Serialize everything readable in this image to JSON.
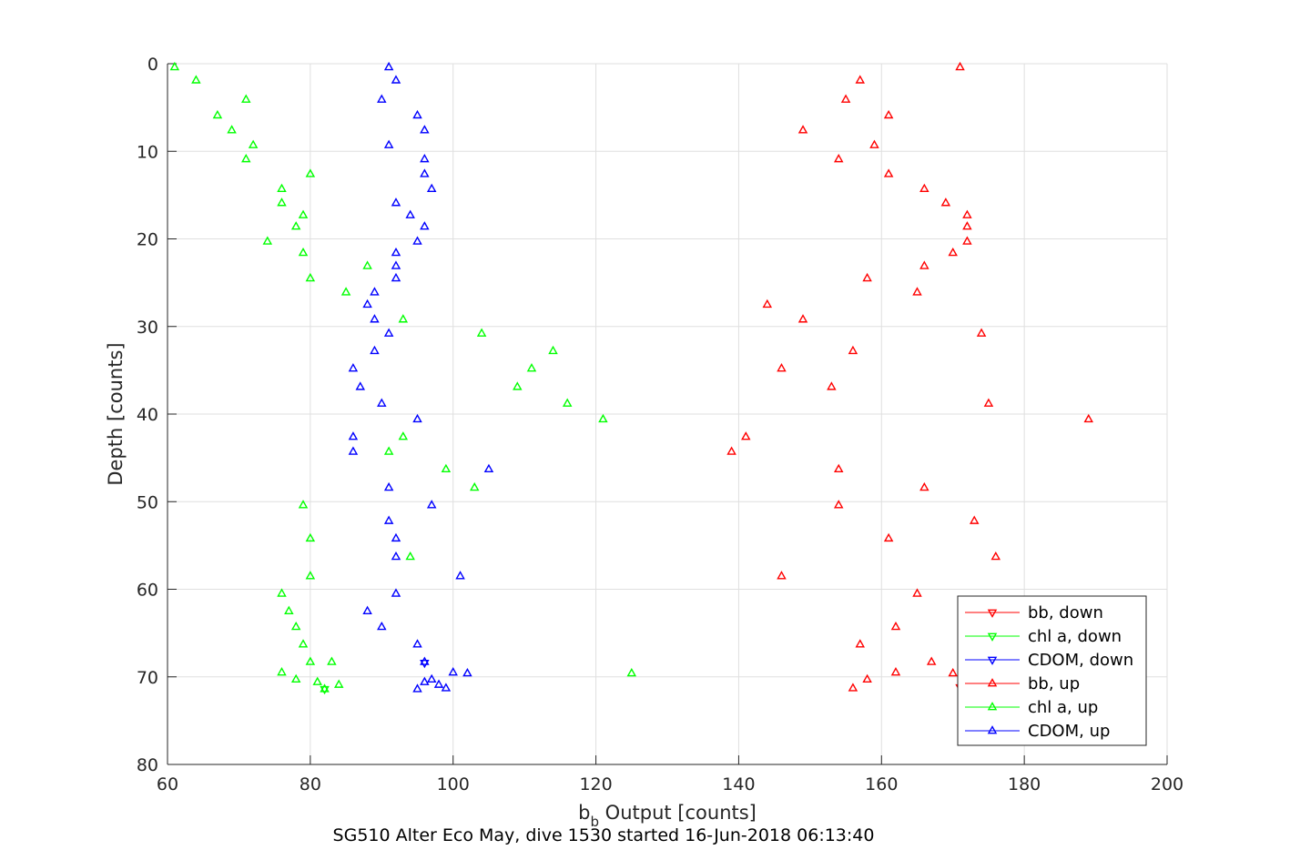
{
  "chart_data": {
    "type": "scatter",
    "title": "",
    "xlabel_main": "b",
    "xlabel_sub": "b",
    "xlabel_rest": " Output [counts]",
    "ylabel": "Depth [counts]",
    "footer": "SG510 Alter Eco May, dive 1530 started 16-Jun-2018 06:13:40",
    "xlim": [
      60,
      200
    ],
    "ylim": [
      0,
      80
    ],
    "y_reversed": true,
    "xticks": [
      60,
      80,
      100,
      120,
      140,
      160,
      180,
      200
    ],
    "yticks": [
      0,
      10,
      20,
      30,
      40,
      50,
      60,
      70,
      80
    ],
    "grid": true,
    "legend_position": "bottom-right",
    "series": [
      {
        "name": "bb, down",
        "color": "#ff0000",
        "marker": "down-triangle",
        "points": [
          [
            171,
            71.2
          ]
        ]
      },
      {
        "name": "chl a, down",
        "color": "#00ff00",
        "marker": "down-triangle",
        "points": [
          [
            82,
            71.4
          ]
        ]
      },
      {
        "name": "CDOM, down",
        "color": "#0000ff",
        "marker": "down-triangle",
        "points": [
          [
            96,
            68.4
          ]
        ]
      },
      {
        "name": "bb, up",
        "color": "#ff0000",
        "marker": "up-triangle",
        "points": [
          [
            171,
            0.4
          ],
          [
            157,
            1.9
          ],
          [
            155,
            4.1
          ],
          [
            161,
            5.9
          ],
          [
            149,
            7.6
          ],
          [
            159,
            9.3
          ],
          [
            154,
            10.9
          ],
          [
            161,
            12.6
          ],
          [
            166,
            14.3
          ],
          [
            169,
            15.9
          ],
          [
            172,
            17.3
          ],
          [
            172,
            18.6
          ],
          [
            172,
            20.3
          ],
          [
            170,
            21.6
          ],
          [
            166,
            23.1
          ],
          [
            158,
            24.5
          ],
          [
            165,
            26.1
          ],
          [
            144,
            27.5
          ],
          [
            149,
            29.2
          ],
          [
            174,
            30.8
          ],
          [
            156,
            32.8
          ],
          [
            146,
            34.8
          ],
          [
            153,
            36.9
          ],
          [
            175,
            38.8
          ],
          [
            189,
            40.6
          ],
          [
            141,
            42.6
          ],
          [
            139,
            44.3
          ],
          [
            154,
            46.3
          ],
          [
            166,
            48.4
          ],
          [
            154,
            50.4
          ],
          [
            173,
            52.2
          ],
          [
            161,
            54.2
          ],
          [
            176,
            56.3
          ],
          [
            146,
            58.5
          ],
          [
            165,
            60.5
          ],
          [
            162,
            64.3
          ],
          [
            157,
            66.3
          ],
          [
            167,
            68.3
          ],
          [
            162,
            69.5
          ],
          [
            170,
            69.6
          ],
          [
            158,
            70.3
          ],
          [
            156,
            71.3
          ]
        ]
      },
      {
        "name": "chl a, up",
        "color": "#00ff00",
        "marker": "up-triangle",
        "points": [
          [
            61,
            0.4
          ],
          [
            64,
            1.9
          ],
          [
            71,
            4.1
          ],
          [
            67,
            5.9
          ],
          [
            69,
            7.6
          ],
          [
            72,
            9.3
          ],
          [
            71,
            10.9
          ],
          [
            80,
            12.6
          ],
          [
            76,
            14.3
          ],
          [
            76,
            15.9
          ],
          [
            79,
            17.3
          ],
          [
            78,
            18.6
          ],
          [
            74,
            20.3
          ],
          [
            79,
            21.6
          ],
          [
            88,
            23.1
          ],
          [
            80,
            24.5
          ],
          [
            85,
            26.1
          ],
          [
            93,
            29.2
          ],
          [
            104,
            30.8
          ],
          [
            114,
            32.8
          ],
          [
            111,
            34.8
          ],
          [
            109,
            36.9
          ],
          [
            116,
            38.8
          ],
          [
            121,
            40.6
          ],
          [
            93,
            42.6
          ],
          [
            91,
            44.3
          ],
          [
            99,
            46.3
          ],
          [
            103,
            48.4
          ],
          [
            79,
            50.4
          ],
          [
            80,
            54.2
          ],
          [
            94,
            56.3
          ],
          [
            80,
            58.5
          ],
          [
            76,
            60.5
          ],
          [
            77,
            62.5
          ],
          [
            78,
            64.3
          ],
          [
            79,
            66.3
          ],
          [
            80,
            68.3
          ],
          [
            83,
            68.3
          ],
          [
            76,
            69.5
          ],
          [
            125,
            69.6
          ],
          [
            78,
            70.3
          ],
          [
            81,
            70.6
          ],
          [
            84,
            70.9
          ],
          [
            82,
            71.4
          ]
        ]
      },
      {
        "name": "CDOM, up",
        "color": "#0000ff",
        "marker": "up-triangle",
        "points": [
          [
            91,
            0.4
          ],
          [
            92,
            1.9
          ],
          [
            90,
            4.1
          ],
          [
            95,
            5.9
          ],
          [
            96,
            7.6
          ],
          [
            91,
            9.3
          ],
          [
            96,
            10.9
          ],
          [
            96,
            12.6
          ],
          [
            97,
            14.3
          ],
          [
            92,
            15.9
          ],
          [
            94,
            17.3
          ],
          [
            96,
            18.6
          ],
          [
            95,
            20.3
          ],
          [
            92,
            21.6
          ],
          [
            92,
            23.1
          ],
          [
            92,
            24.5
          ],
          [
            89,
            26.1
          ],
          [
            88,
            27.5
          ],
          [
            89,
            29.2
          ],
          [
            91,
            30.8
          ],
          [
            89,
            32.8
          ],
          [
            86,
            34.8
          ],
          [
            87,
            36.9
          ],
          [
            90,
            38.8
          ],
          [
            95,
            40.6
          ],
          [
            86,
            42.6
          ],
          [
            86,
            44.3
          ],
          [
            105,
            46.3
          ],
          [
            91,
            48.4
          ],
          [
            97,
            50.4
          ],
          [
            91,
            52.2
          ],
          [
            92,
            54.2
          ],
          [
            92,
            56.3
          ],
          [
            101,
            58.5
          ],
          [
            92,
            60.5
          ],
          [
            88,
            62.5
          ],
          [
            90,
            64.3
          ],
          [
            95,
            66.3
          ],
          [
            96,
            68.3
          ],
          [
            100,
            69.5
          ],
          [
            102,
            69.6
          ],
          [
            97,
            70.3
          ],
          [
            96,
            70.6
          ],
          [
            98,
            70.9
          ],
          [
            99,
            71.3
          ],
          [
            95,
            71.4
          ]
        ]
      }
    ]
  }
}
